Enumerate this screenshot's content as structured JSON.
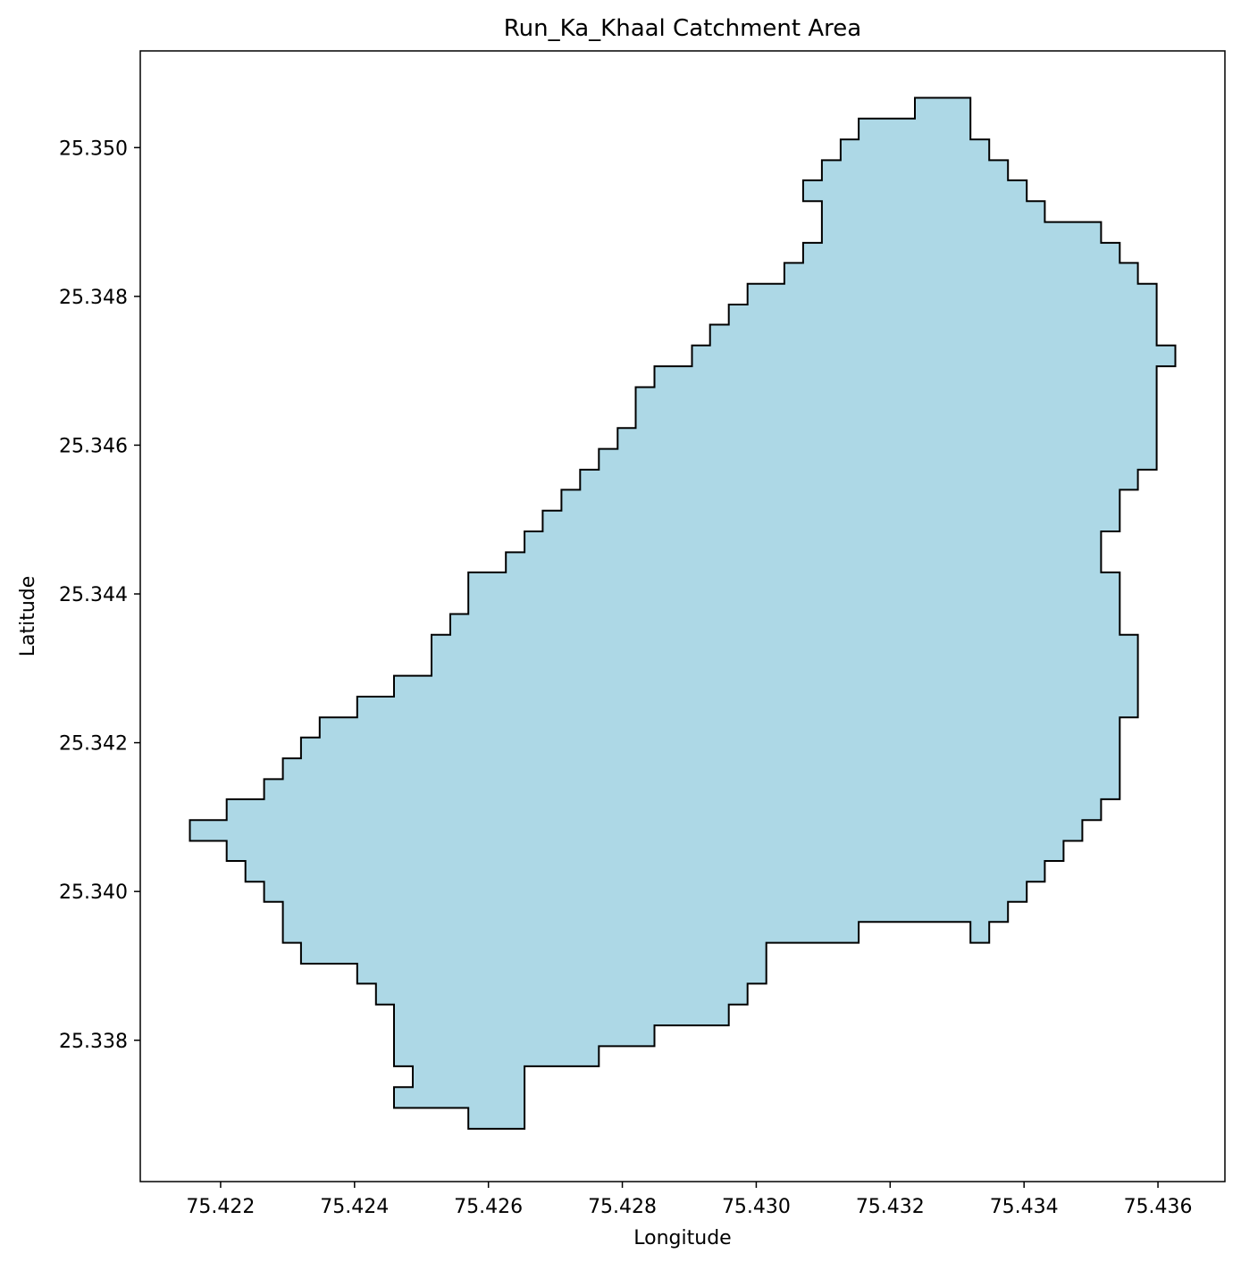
{
  "chart_data": {
    "type": "map",
    "title": "Run_Ka_Khaal Catchment Area",
    "xlabel": "Longitude",
    "ylabel": "Latitude",
    "xlim": [
      75.4208,
      75.437
    ],
    "ylim": [
      25.3361,
      25.3513
    ],
    "xticks": [
      {
        "value": 75.422,
        "label": "75.422"
      },
      {
        "value": 75.424,
        "label": "75.424"
      },
      {
        "value": 75.426,
        "label": "75.426"
      },
      {
        "value": 75.428,
        "label": "75.428"
      },
      {
        "value": 75.43,
        "label": "75.430"
      },
      {
        "value": 75.432,
        "label": "75.432"
      },
      {
        "value": 75.434,
        "label": "75.434"
      },
      {
        "value": 75.436,
        "label": "75.436"
      }
    ],
    "yticks": [
      {
        "value": 25.338,
        "label": "25.338"
      },
      {
        "value": 25.34,
        "label": "25.340"
      },
      {
        "value": 25.342,
        "label": "25.342"
      },
      {
        "value": 25.344,
        "label": "25.344"
      },
      {
        "value": 25.346,
        "label": "25.346"
      },
      {
        "value": 25.348,
        "label": "25.348"
      },
      {
        "value": 25.35,
        "label": "25.350"
      }
    ],
    "grid": false,
    "fill_color": "#add8e6",
    "edge_color": "#000000",
    "polygon": [
      [
        75.42154,
        25.34096
      ],
      [
        75.42154,
        25.34068
      ],
      [
        75.42209,
        25.34068
      ],
      [
        75.42209,
        25.34041
      ],
      [
        75.42237,
        25.34041
      ],
      [
        75.42237,
        25.34013
      ],
      [
        75.42265,
        25.34013
      ],
      [
        75.42265,
        25.33986
      ],
      [
        75.42293,
        25.33986
      ],
      [
        75.42293,
        25.33931
      ],
      [
        75.4232,
        25.33931
      ],
      [
        75.4232,
        25.33903
      ],
      [
        75.42404,
        25.33903
      ],
      [
        75.42404,
        25.33876
      ],
      [
        75.42432,
        25.33876
      ],
      [
        75.42432,
        25.33848
      ],
      [
        75.42459,
        25.33848
      ],
      [
        75.42459,
        25.33765
      ],
      [
        75.42487,
        25.33765
      ],
      [
        75.42487,
        25.33737
      ],
      [
        75.42459,
        25.33737
      ],
      [
        75.42459,
        25.33709
      ],
      [
        75.4257,
        25.33709
      ],
      [
        75.4257,
        25.33681
      ],
      [
        75.42654,
        25.33681
      ],
      [
        75.42654,
        25.33765
      ],
      [
        75.42765,
        25.33765
      ],
      [
        75.42765,
        25.33792
      ],
      [
        75.42848,
        25.33792
      ],
      [
        75.42848,
        25.3382
      ],
      [
        75.42959,
        25.3382
      ],
      [
        75.42959,
        25.33848
      ],
      [
        75.42987,
        25.33848
      ],
      [
        75.42987,
        25.33876
      ],
      [
        75.43015,
        25.33876
      ],
      [
        75.43015,
        25.33931
      ],
      [
        75.43153,
        25.33931
      ],
      [
        75.43153,
        25.33959
      ],
      [
        75.4332,
        25.33959
      ],
      [
        75.4332,
        25.33931
      ],
      [
        75.43348,
        25.33931
      ],
      [
        75.43348,
        25.33959
      ],
      [
        75.43376,
        25.33959
      ],
      [
        75.43376,
        25.33986
      ],
      [
        75.43404,
        25.33986
      ],
      [
        75.43404,
        25.34013
      ],
      [
        75.43431,
        25.34013
      ],
      [
        75.43431,
        25.34041
      ],
      [
        75.43459,
        25.34041
      ],
      [
        75.43459,
        25.34068
      ],
      [
        75.43487,
        25.34068
      ],
      [
        75.43487,
        25.34096
      ],
      [
        75.43515,
        25.34096
      ],
      [
        75.43515,
        25.34124
      ],
      [
        75.43543,
        25.34124
      ],
      [
        75.43543,
        25.34234
      ],
      [
        75.4357,
        25.34234
      ],
      [
        75.4357,
        25.34345
      ],
      [
        75.43543,
        25.34345
      ],
      [
        75.43543,
        25.34429
      ],
      [
        75.43515,
        25.34429
      ],
      [
        75.43515,
        25.34484
      ],
      [
        75.43543,
        25.34484
      ],
      [
        75.43543,
        25.3454
      ],
      [
        75.4357,
        25.3454
      ],
      [
        75.4357,
        25.34567
      ],
      [
        75.43598,
        25.34567
      ],
      [
        75.43598,
        25.34706
      ],
      [
        75.43626,
        25.34706
      ],
      [
        75.43626,
        25.34734
      ],
      [
        75.43598,
        25.34734
      ],
      [
        75.43598,
        25.34817
      ],
      [
        75.4357,
        25.34817
      ],
      [
        75.4357,
        25.34845
      ],
      [
        75.43543,
        25.34845
      ],
      [
        75.43543,
        25.34872
      ],
      [
        75.43515,
        25.34872
      ],
      [
        75.43515,
        25.349
      ],
      [
        75.43431,
        25.349
      ],
      [
        75.43431,
        25.34928
      ],
      [
        75.43404,
        25.34928
      ],
      [
        75.43404,
        25.34956
      ],
      [
        75.43376,
        25.34956
      ],
      [
        75.43376,
        25.34983
      ],
      [
        75.43348,
        25.34983
      ],
      [
        75.43348,
        25.35011
      ],
      [
        75.4332,
        25.35011
      ],
      [
        75.4332,
        25.35067
      ],
      [
        75.43237,
        25.35067
      ],
      [
        75.43237,
        25.35039
      ],
      [
        75.43153,
        25.35039
      ],
      [
        75.43153,
        25.35011
      ],
      [
        75.43126,
        25.35011
      ],
      [
        75.43126,
        25.34983
      ],
      [
        75.43098,
        25.34983
      ],
      [
        75.43098,
        25.34956
      ],
      [
        75.4307,
        25.34956
      ],
      [
        75.4307,
        25.34928
      ],
      [
        75.43098,
        25.34928
      ],
      [
        75.43098,
        25.34872
      ],
      [
        75.4307,
        25.34872
      ],
      [
        75.4307,
        25.34845
      ],
      [
        75.43042,
        25.34845
      ],
      [
        75.43042,
        25.34817
      ],
      [
        75.42987,
        25.34817
      ],
      [
        75.42987,
        25.34789
      ],
      [
        75.42959,
        25.34789
      ],
      [
        75.42959,
        25.34762
      ],
      [
        75.42931,
        25.34762
      ],
      [
        75.42931,
        25.34734
      ],
      [
        75.42904,
        25.34734
      ],
      [
        75.42904,
        25.34706
      ],
      [
        75.42848,
        25.34706
      ],
      [
        75.42848,
        25.34678
      ],
      [
        75.4282,
        25.34678
      ],
      [
        75.4282,
        25.34623
      ],
      [
        75.42793,
        25.34623
      ],
      [
        75.42793,
        25.34595
      ],
      [
        75.42765,
        25.34595
      ],
      [
        75.42765,
        25.34567
      ],
      [
        75.42737,
        25.34567
      ],
      [
        75.42737,
        25.3454
      ],
      [
        75.42709,
        25.3454
      ],
      [
        75.42709,
        25.34512
      ],
      [
        75.42681,
        25.34512
      ],
      [
        75.42681,
        25.34484
      ],
      [
        75.42654,
        25.34484
      ],
      [
        75.42654,
        25.34456
      ],
      [
        75.42626,
        25.34456
      ],
      [
        75.42626,
        25.34429
      ],
      [
        75.4257,
        25.34429
      ],
      [
        75.4257,
        25.34373
      ],
      [
        75.42543,
        25.34373
      ],
      [
        75.42543,
        25.34345
      ],
      [
        75.42515,
        25.34345
      ],
      [
        75.42515,
        25.3429
      ],
      [
        75.42459,
        25.3429
      ],
      [
        75.42459,
        25.34262
      ],
      [
        75.42404,
        25.34262
      ],
      [
        75.42404,
        25.34234
      ],
      [
        75.42348,
        25.34234
      ],
      [
        75.42348,
        25.34207
      ],
      [
        75.4232,
        25.34207
      ],
      [
        75.4232,
        25.34179
      ],
      [
        75.42293,
        25.34179
      ],
      [
        75.42293,
        25.34151
      ],
      [
        75.42265,
        25.34151
      ],
      [
        75.42265,
        25.34124
      ],
      [
        75.42209,
        25.34124
      ],
      [
        75.42209,
        25.34096
      ]
    ]
  }
}
